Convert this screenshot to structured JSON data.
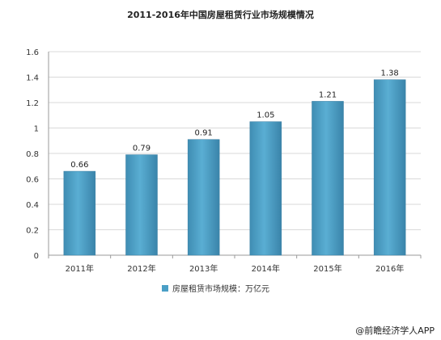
{
  "chart_data": {
    "type": "bar",
    "title": "2011-2016年中国房屋租赁行业市场规模情况",
    "categories": [
      "2011年",
      "2012年",
      "2013年",
      "2014年",
      "2015年",
      "2016年"
    ],
    "series": [
      {
        "name": "房屋租赁市场规模：万亿元",
        "values": [
          0.66,
          0.79,
          0.91,
          1.05,
          1.21,
          1.38
        ]
      }
    ],
    "data_labels": [
      "0.66",
      "0.79",
      "0.91",
      "1.05",
      "1.21",
      "1.38"
    ],
    "yticks": [
      "0",
      "0.2",
      "0.4",
      "0.6",
      "0.8",
      "1",
      "1.2",
      "1.4",
      "1.6"
    ],
    "ylim": [
      0,
      1.6
    ],
    "grid": "horizontal",
    "legend_position": "bottom",
    "bar_color": "#4a9fc6"
  },
  "footer": {
    "credit": "@前瞻经济学人APP"
  }
}
